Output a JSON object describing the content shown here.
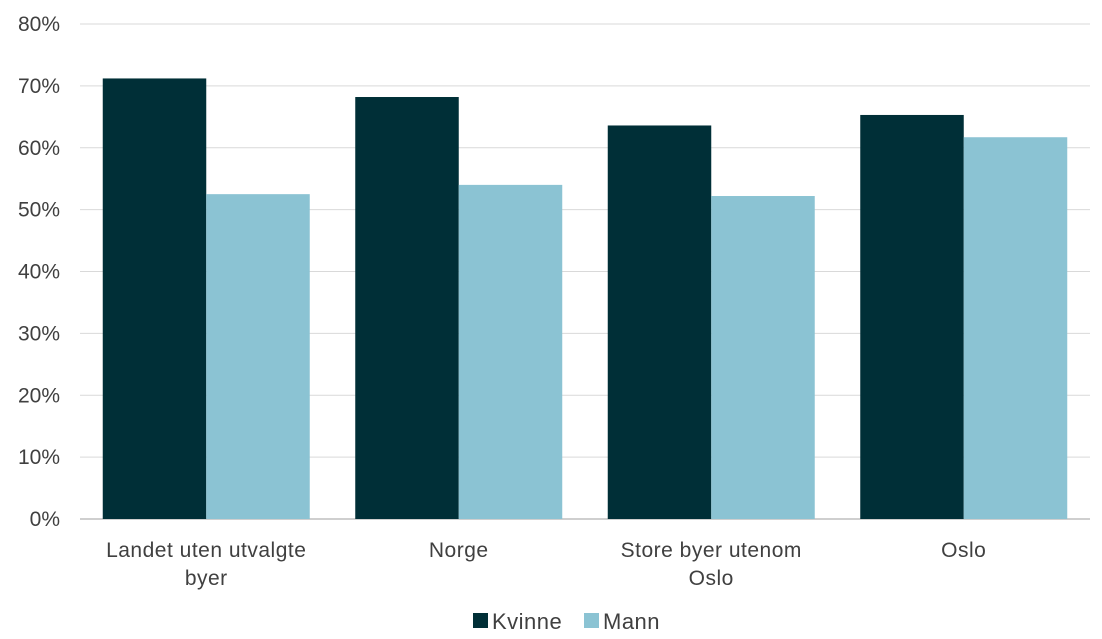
{
  "chart_data": {
    "type": "bar",
    "categories": [
      [
        "Landet uten utvalgte",
        "byer"
      ],
      [
        "Norge"
      ],
      [
        "Store byer utenom",
        "Oslo"
      ],
      [
        "Oslo"
      ]
    ],
    "series": [
      {
        "name": "Kvinne",
        "color": "#002f37",
        "values": [
          71.2,
          68.2,
          63.6,
          65.3
        ]
      },
      {
        "name": "Mann",
        "color": "#8bc3d3",
        "values": [
          52.5,
          54.0,
          52.2,
          61.7
        ]
      }
    ],
    "y_ticks": [
      "0%",
      "10%",
      "20%",
      "30%",
      "40%",
      "50%",
      "60%",
      "70%",
      "80%"
    ],
    "ylim": [
      0,
      80
    ],
    "grid": true,
    "legend": "bottom-center"
  }
}
